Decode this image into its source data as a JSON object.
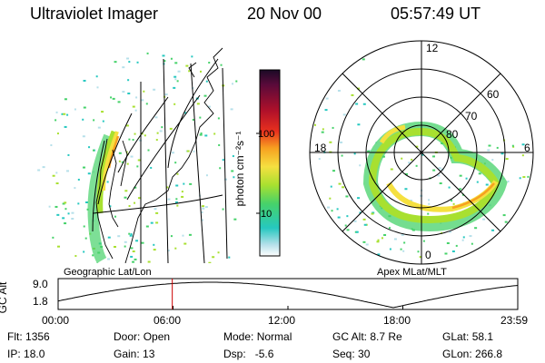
{
  "header": {
    "instrument": "Ultraviolet Imager",
    "date": "20 Nov 00",
    "time": "05:57:49 UT"
  },
  "panels": {
    "left_title": "Geographic Lat/Lon",
    "right_title": "Apex MLat/MLT"
  },
  "colorbar": {
    "unit_label": "photon cm⁻²s⁻¹",
    "tick_labels": [
      "100",
      "10"
    ],
    "tick_values": [
      100,
      10
    ],
    "scale": "log",
    "colors": [
      "#1a0a26",
      "#5a0a3a",
      "#b0102a",
      "#e8301e",
      "#f7a020",
      "#f5e040",
      "#a8e030",
      "#46d26a",
      "#26c8c0",
      "#b6e0ea",
      "#ffffff"
    ]
  },
  "polar": {
    "lat_rings": [
      "60",
      "70",
      "80"
    ],
    "mlt_labels": {
      "top": "12",
      "left": "18",
      "right": "6",
      "bottom": "0"
    }
  },
  "altitude_plot": {
    "ylabel": "GC Alt",
    "yticks": [
      "9.0",
      "1.8"
    ],
    "xticks": [
      "00:00",
      "06:00",
      "12:00",
      "18:00",
      "23:59"
    ],
    "current_time_hours": 5.96,
    "marker_color": "#cc0000"
  },
  "info": {
    "rows": [
      [
        {
          "label": "Flt:",
          "value": "1356"
        },
        {
          "label": "Door:",
          "value": "Open"
        },
        {
          "label": "Mode:",
          "value": "Normal"
        },
        {
          "label": "GC Alt:",
          "value": "8.7 Re"
        },
        {
          "label": "GLat:",
          "value": "58.1"
        }
      ],
      [
        {
          "label": "IP:",
          "value": "18.0"
        },
        {
          "label": "Gain:",
          "value": "13"
        },
        {
          "label": "Dsp:",
          "value": "-5.6"
        },
        {
          "label": "Seq:",
          "value": "30"
        },
        {
          "label": "GLon:",
          "value": "266.8"
        }
      ]
    ]
  }
}
